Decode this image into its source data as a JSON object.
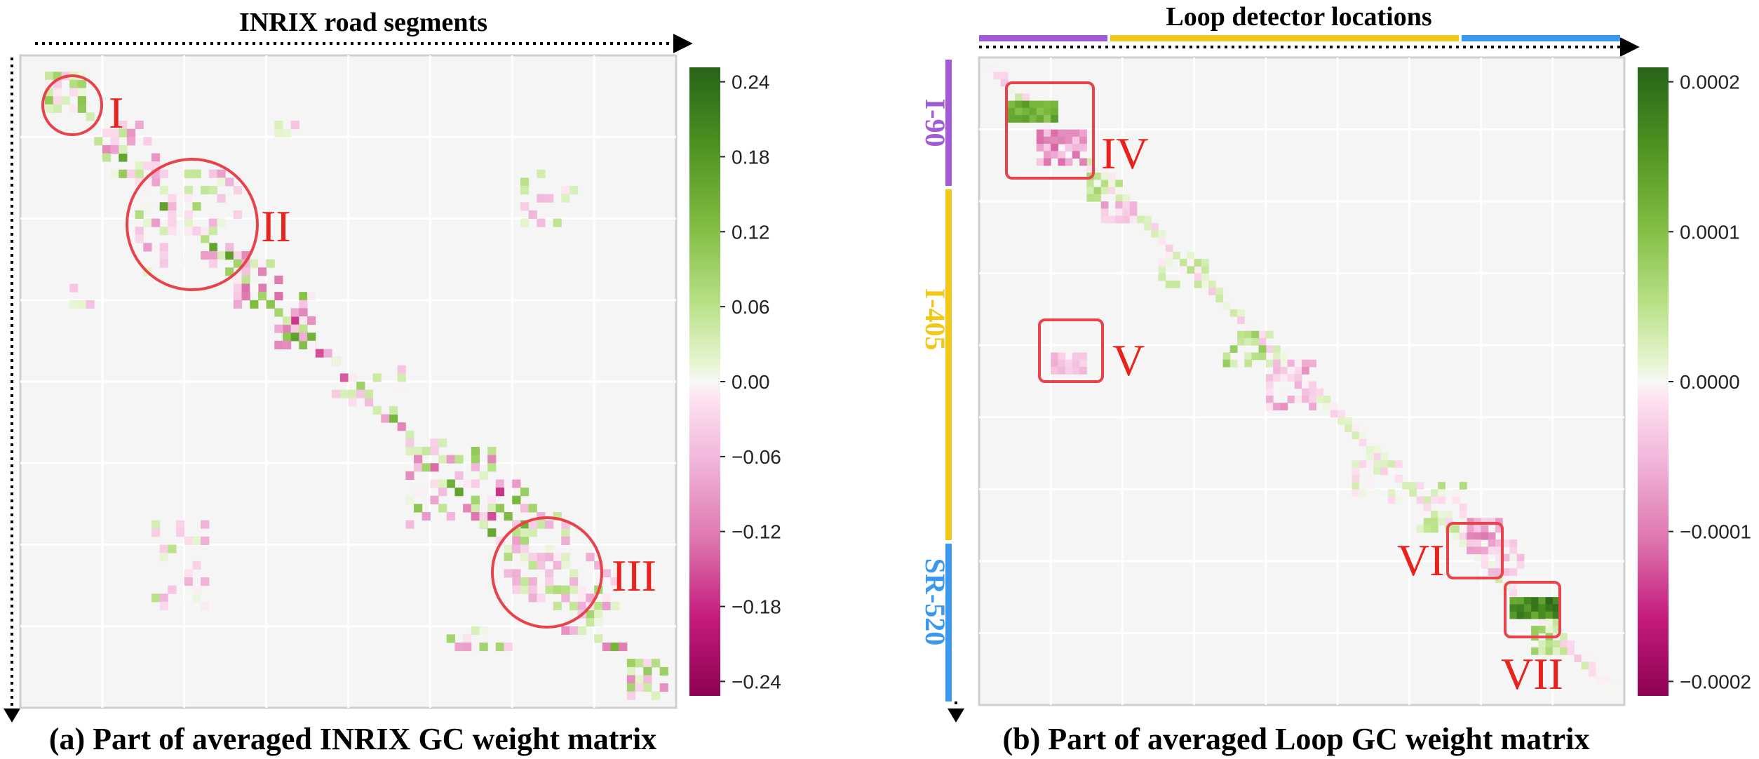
{
  "chart_data": [
    {
      "type": "heatmap",
      "title": "INRIX road segments",
      "caption": "(a) Part of averaged INRIX GC weight matrix",
      "colorbar": {
        "ticks": [
          "0.24",
          "0.18",
          "0.12",
          "0.06",
          "0.00",
          "−0.06",
          "−0.12",
          "−0.18",
          "−0.24"
        ],
        "vmin": -0.24,
        "vmax": 0.24,
        "colormap": "PiYG"
      },
      "annotations": [
        "I",
        "II",
        "III"
      ],
      "grid": true
    },
    {
      "type": "heatmap",
      "title": "Loop detector locations",
      "caption": "(b) Part of averaged Loop GC weight matrix",
      "colorbar": {
        "ticks": [
          "0.0002",
          "0.0001",
          "0.0000",
          "−0.0001",
          "−0.0002"
        ],
        "vmin": -0.00025,
        "vmax": 0.00025,
        "colormap": "PiYG"
      },
      "annotations": [
        "IV",
        "V",
        "VI",
        "VII"
      ],
      "road_groups": [
        {
          "name": "I-90",
          "color": "#a35ad6"
        },
        {
          "name": "I-405",
          "color": "#f2c818"
        },
        {
          "name": "SR-520",
          "color": "#3a98ee"
        }
      ],
      "grid": true
    }
  ],
  "colors": {
    "annotation": "#e8231e",
    "background": "#f5f5f5",
    "grid": "#ffffff"
  }
}
